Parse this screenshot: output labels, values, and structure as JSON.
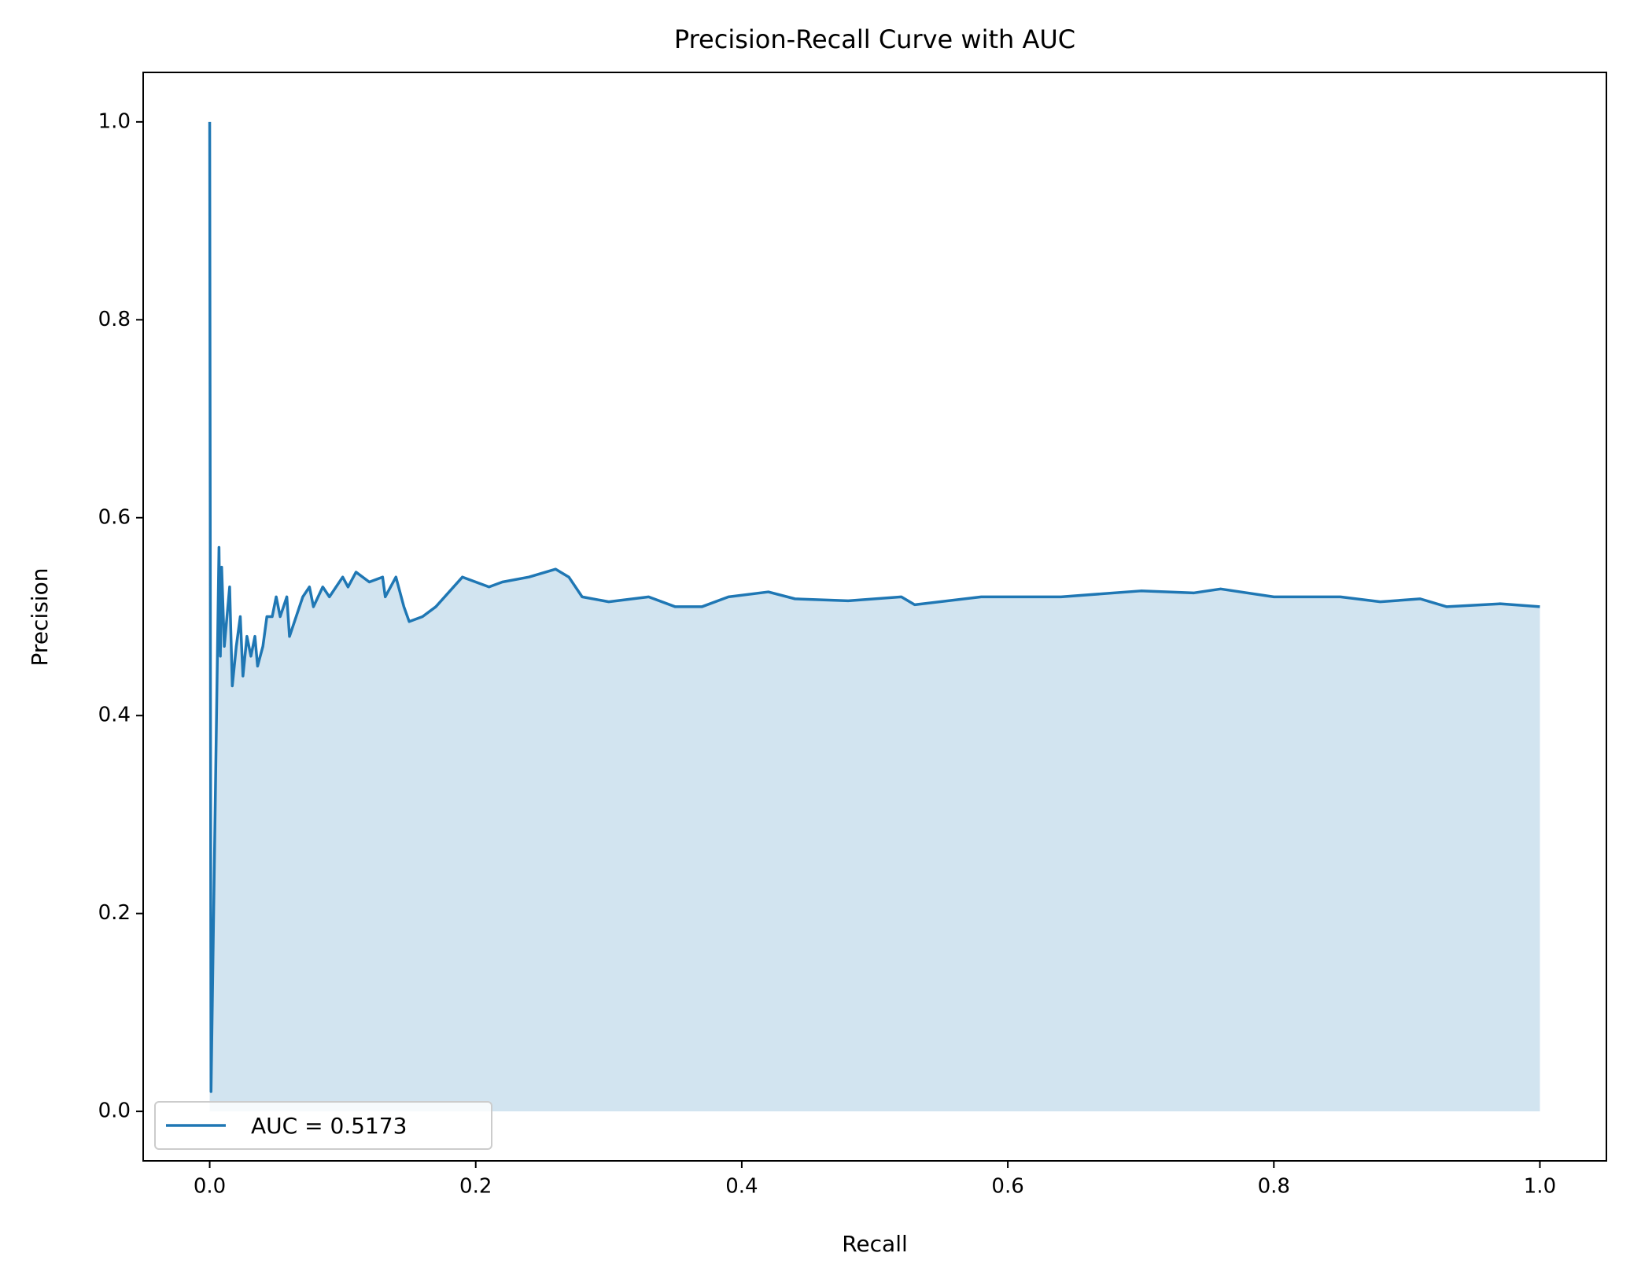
{
  "chart_data": {
    "type": "line",
    "title": "Precision-Recall Curve with AUC",
    "x_label": "Recall",
    "y_label": "Precision",
    "xlim": [
      -0.05,
      1.05
    ],
    "ylim": [
      -0.05,
      1.05
    ],
    "xticks": [
      {
        "value": 0,
        "label": "0.0"
      },
      0.2,
      0.4,
      0.6,
      0.8,
      {
        "value": 1,
        "label": "1.0"
      }
    ],
    "yticks": [
      {
        "value": 0,
        "label": "0.0"
      },
      0.2,
      0.4,
      0.6,
      0.8,
      {
        "value": 1,
        "label": "1.0"
      }
    ],
    "grid": false,
    "legend": "lower left",
    "fill": true,
    "series": [
      {
        "name": "AUC = 0.5173",
        "color": "#1f77b4",
        "x": [
          0,
          0.001,
          0.007,
          0.008,
          0.009,
          0.011,
          0.013,
          0.015,
          0.017,
          0.02,
          0.023,
          0.025,
          0.028,
          0.031,
          0.034,
          0.036,
          0.04,
          0.043,
          0.047,
          0.05,
          0.053,
          0.058,
          0.06,
          0.07,
          0.075,
          0.078,
          0.085,
          0.09,
          0.1,
          0.104,
          0.11,
          0.12,
          0.13,
          0.132,
          0.14,
          0.143,
          0.146,
          0.15,
          0.16,
          0.17,
          0.19,
          0.2,
          0.21,
          0.22,
          0.24,
          0.26,
          0.27,
          0.28,
          0.3,
          0.33,
          0.35,
          0.37,
          0.39,
          0.42,
          0.44,
          0.48,
          0.52,
          0.53,
          0.58,
          0.64,
          0.7,
          0.74,
          0.76,
          0.8,
          0.85,
          0.88,
          0.91,
          0.93,
          0.97,
          1.0
        ],
        "values": [
          1.0,
          0.02,
          0.57,
          0.46,
          0.55,
          0.47,
          0.5,
          0.53,
          0.43,
          0.47,
          0.5,
          0.44,
          0.48,
          0.46,
          0.48,
          0.45,
          0.47,
          0.5,
          0.5,
          0.52,
          0.5,
          0.52,
          0.48,
          0.52,
          0.53,
          0.51,
          0.53,
          0.52,
          0.54,
          0.53,
          0.545,
          0.535,
          0.54,
          0.52,
          0.54,
          0.525,
          0.51,
          0.495,
          0.5,
          0.51,
          0.54,
          0.535,
          0.53,
          0.535,
          0.54,
          0.548,
          0.54,
          0.52,
          0.515,
          0.52,
          0.51,
          0.51,
          0.52,
          0.525,
          0.518,
          0.516,
          0.52,
          0.512,
          0.52,
          0.52,
          0.526,
          0.524,
          0.528,
          0.52,
          0.52,
          0.515,
          0.518,
          0.51,
          0.513,
          0.51
        ]
      }
    ]
  }
}
